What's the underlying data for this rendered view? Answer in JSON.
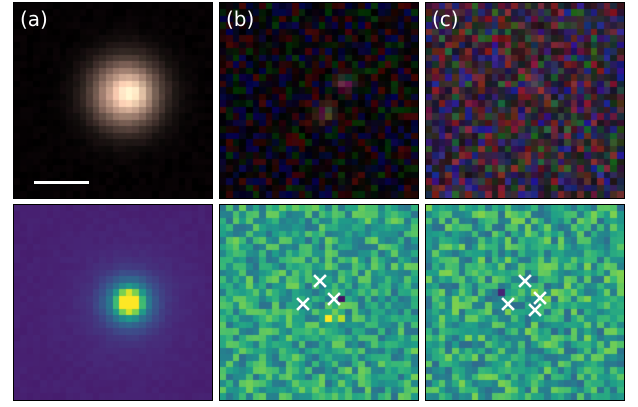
{
  "panels": {
    "a": {
      "label": "(a)",
      "colormap": "rgb-composite"
    },
    "b": {
      "label": "(b)",
      "colormap": "rgb-composite"
    },
    "c": {
      "label": "(c)",
      "colormap": "rgb-composite"
    },
    "d": {
      "colormap": "viridis"
    },
    "e": {
      "colormap": "viridis",
      "marker_count": 3
    },
    "f": {
      "colormap": "viridis",
      "marker_count": 4
    }
  },
  "marker_color": "#ffffff",
  "marker_icon": "x-cross-icon"
}
